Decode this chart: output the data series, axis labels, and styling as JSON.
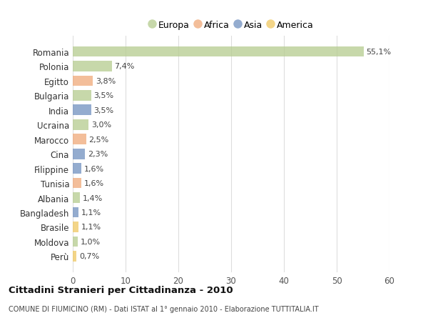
{
  "countries": [
    "Romania",
    "Polonia",
    "Egitto",
    "Bulgaria",
    "India",
    "Ucraina",
    "Marocco",
    "Cina",
    "Filippine",
    "Tunisia",
    "Albania",
    "Bangladesh",
    "Brasile",
    "Moldova",
    "Perù"
  ],
  "values": [
    55.1,
    7.4,
    3.8,
    3.5,
    3.5,
    3.0,
    2.5,
    2.3,
    1.6,
    1.6,
    1.4,
    1.1,
    1.1,
    1.0,
    0.7
  ],
  "labels": [
    "55,1%",
    "7,4%",
    "3,8%",
    "3,5%",
    "3,5%",
    "3,0%",
    "2,5%",
    "2,3%",
    "1,6%",
    "1,6%",
    "1,4%",
    "1,1%",
    "1,1%",
    "1,0%",
    "0,7%"
  ],
  "colors": [
    "#b5cc8e",
    "#b5cc8e",
    "#f0a878",
    "#b5cc8e",
    "#7090c0",
    "#b5cc8e",
    "#f0a878",
    "#7090c0",
    "#7090c0",
    "#f0a878",
    "#b5cc8e",
    "#7090c0",
    "#f0c860",
    "#b5cc8e",
    "#f0c860"
  ],
  "legend_labels": [
    "Europa",
    "Africa",
    "Asia",
    "America"
  ],
  "legend_colors": [
    "#b5cc8e",
    "#f0a878",
    "#7090c0",
    "#f0c860"
  ],
  "title": "Cittadini Stranieri per Cittadinanza - 2010",
  "subtitle": "COMUNE DI FIUMICINO (RM) - Dati ISTAT al 1° gennaio 2010 - Elaborazione TUTTITALIA.IT",
  "xlim": [
    0,
    60
  ],
  "xticks": [
    0,
    10,
    20,
    30,
    40,
    50,
    60
  ],
  "background_color": "#ffffff",
  "grid_color": "#dddddd",
  "bar_alpha": 0.75
}
